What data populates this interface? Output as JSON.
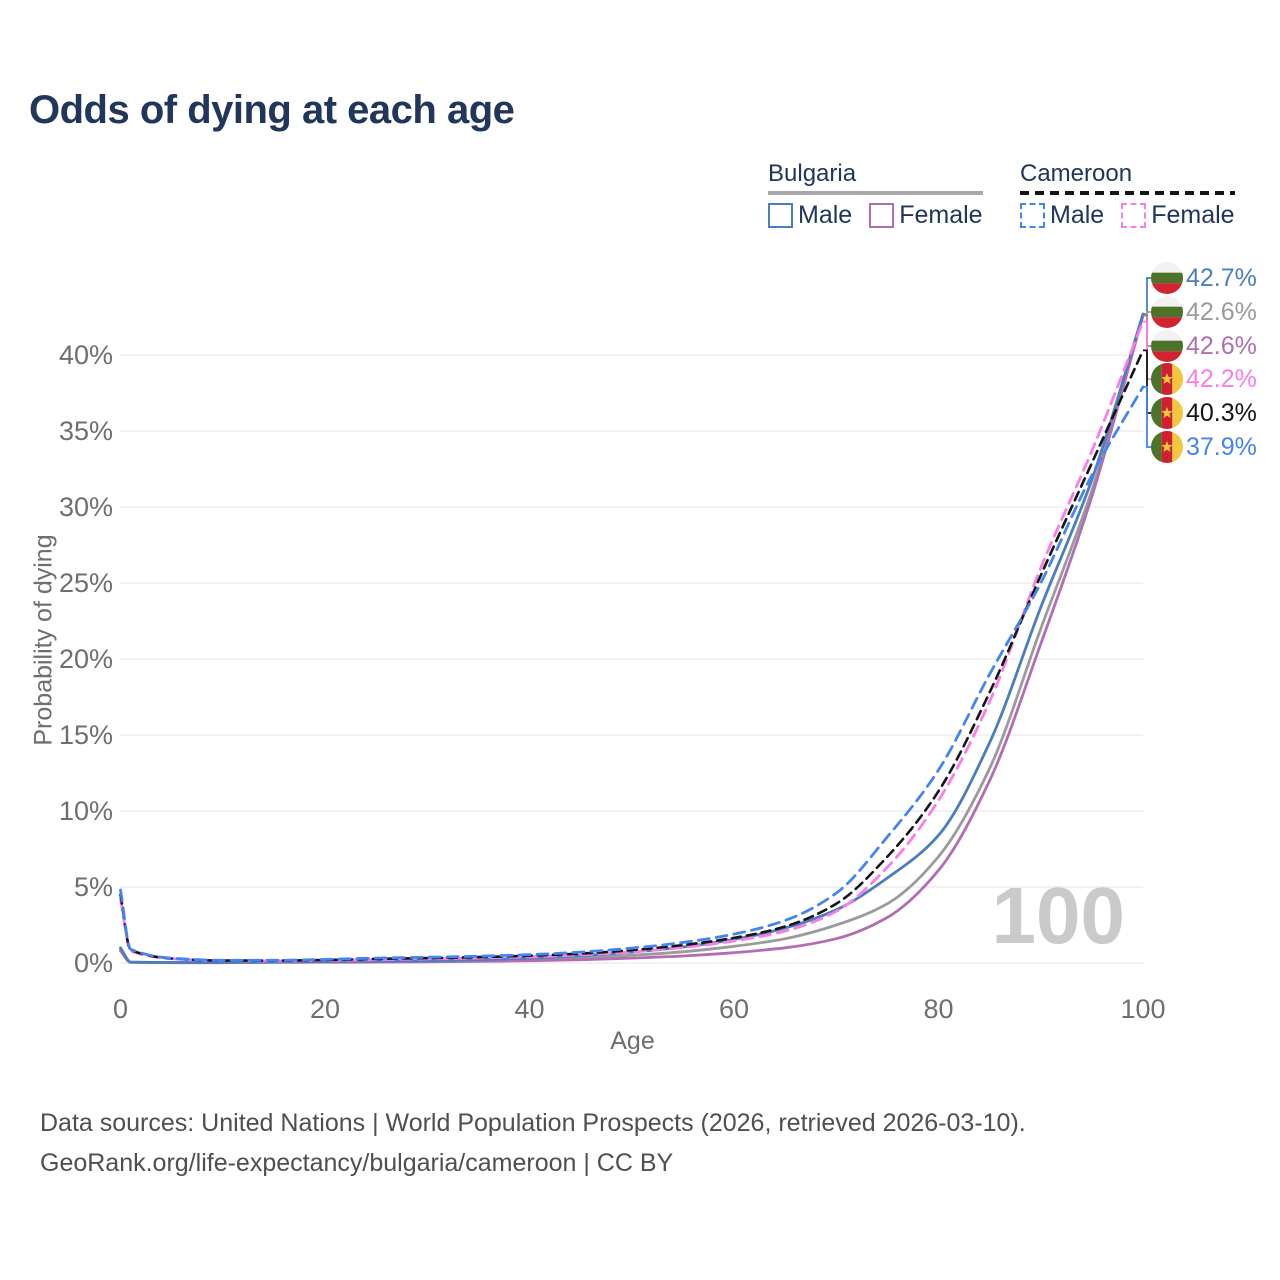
{
  "title": "Odds of dying at each age",
  "legend": {
    "groups": [
      {
        "name": "Bulgaria",
        "line_style": "solid",
        "line_color": "#9b9b9b",
        "items": [
          {
            "label": "Male",
            "color": "#4a7ebc",
            "dashed": false
          },
          {
            "label": "Female",
            "color": "#b06fb2",
            "dashed": false
          }
        ]
      },
      {
        "name": "Cameroon",
        "line_style": "dashed",
        "line_color": "#151515",
        "items": [
          {
            "label": "Male",
            "color": "#4484f3",
            "dashed": true
          },
          {
            "label": "Female",
            "color": "#fb7de7",
            "dashed": true
          }
        ]
      }
    ]
  },
  "axes": {
    "xlabel": "Age",
    "ylabel": "Probability of dying",
    "x_ticks": [
      "0",
      "20",
      "40",
      "60",
      "80",
      "100"
    ],
    "y_ticks": [
      "0%",
      "5%",
      "10%",
      "15%",
      "20%",
      "25%",
      "30%",
      "35%",
      "40%"
    ]
  },
  "age_counter": "100",
  "end_labels": [
    {
      "value": "42.7%",
      "flag": "bulgaria",
      "color": "#4a7ebc",
      "series": "Bulgaria Male"
    },
    {
      "value": "42.6%",
      "flag": "bulgaria",
      "color": "#9b9b9b",
      "series": "Bulgaria Both sexes"
    },
    {
      "value": "42.6%",
      "flag": "bulgaria",
      "color": "#b06fb2",
      "series": "Bulgaria Female"
    },
    {
      "value": "42.2%",
      "flag": "cameroon",
      "color": "#fb7de7",
      "series": "Cameroon Female"
    },
    {
      "value": "40.3%",
      "flag": "cameroon",
      "color": "#151515",
      "series": "Cameroon Both sexes"
    },
    {
      "value": "37.9%",
      "flag": "cameroon",
      "color": "#4484f3",
      "series": "Cameroon Male"
    }
  ],
  "footer": {
    "line1": "Data sources: United Nations | World Population Prospects (2026, retrieved 2026-03-10).",
    "line2": "GeoRank.org/life-expectancy/bulgaria/cameroon | CC BY"
  },
  "flag_colors": {
    "bulgaria": {
      "white": "#f2f2f2",
      "green": "#4c7327",
      "red": "#d12330"
    },
    "cameroon": {
      "green": "#4c7327",
      "red": "#cf1f30",
      "yellow": "#f2c63d"
    }
  },
  "chart_data": {
    "type": "line",
    "title": "Odds of dying at each age",
    "xlabel": "Age",
    "ylabel": "Probability of dying",
    "xlim": [
      0,
      100
    ],
    "ylim": [
      0,
      0.45
    ],
    "grid": "horizontal",
    "legend_position": "top-right",
    "x": [
      0,
      1,
      5,
      10,
      15,
      20,
      25,
      30,
      35,
      40,
      45,
      50,
      55,
      60,
      65,
      70,
      75,
      80,
      85,
      90,
      95,
      100
    ],
    "series": [
      {
        "name": "Bulgaria Male",
        "country": "Bulgaria",
        "sex": "Male",
        "color": "#4a7ebc",
        "dash": "solid",
        "end_label": "42.7%",
        "values": [
          0.01,
          0.0006,
          0.0003,
          0.0003,
          0.0006,
          0.001,
          0.0012,
          0.0015,
          0.0022,
          0.0032,
          0.0048,
          0.0072,
          0.0105,
          0.0155,
          0.023,
          0.035,
          0.056,
          0.084,
          0.145,
          0.234,
          0.318,
          0.427
        ]
      },
      {
        "name": "Bulgaria Both sexes",
        "country": "Bulgaria",
        "sex": "Both",
        "color": "#9b9b9b",
        "dash": "solid",
        "end_label": "42.6%",
        "values": [
          0.009,
          0.0005,
          0.00025,
          0.00025,
          0.0005,
          0.0008,
          0.0009,
          0.0011,
          0.0016,
          0.0023,
          0.0034,
          0.0051,
          0.0074,
          0.011,
          0.016,
          0.025,
          0.039,
          0.07,
          0.128,
          0.22,
          0.311,
          0.426
        ]
      },
      {
        "name": "Bulgaria Female",
        "country": "Bulgaria",
        "sex": "Female",
        "color": "#b06fb2",
        "dash": "solid",
        "end_label": "42.6%",
        "values": [
          0.008,
          0.0004,
          0.0002,
          0.0002,
          0.0004,
          0.0005,
          0.0006,
          0.0008,
          0.0011,
          0.0015,
          0.0022,
          0.0032,
          0.0046,
          0.0068,
          0.01,
          0.016,
          0.03,
          0.061,
          0.12,
          0.21,
          0.307,
          0.426
        ]
      },
      {
        "name": "Cameroon Female",
        "country": "Cameroon",
        "sex": "Female",
        "color": "#fb7de7",
        "dash": "dashed",
        "end_label": "42.2%",
        "values": [
          0.042,
          0.008,
          0.0028,
          0.0015,
          0.0014,
          0.0017,
          0.0022,
          0.0027,
          0.0033,
          0.0041,
          0.0053,
          0.0073,
          0.0102,
          0.0145,
          0.021,
          0.034,
          0.063,
          0.107,
          0.172,
          0.26,
          0.337,
          0.422
        ]
      },
      {
        "name": "Cameroon Both sexes",
        "country": "Cameroon",
        "sex": "Both",
        "color": "#151515",
        "dash": "dashed",
        "end_label": "40.3%",
        "values": [
          0.045,
          0.0085,
          0.003,
          0.0016,
          0.0016,
          0.002,
          0.0027,
          0.0032,
          0.0039,
          0.0048,
          0.0062,
          0.0085,
          0.0118,
          0.0165,
          0.024,
          0.039,
          0.07,
          0.113,
          0.178,
          0.255,
          0.329,
          0.403
        ]
      },
      {
        "name": "Cameroon Male",
        "country": "Cameroon",
        "sex": "Male",
        "color": "#4484f3",
        "dash": "dashed",
        "end_label": "37.9%",
        "values": [
          0.048,
          0.009,
          0.0032,
          0.0018,
          0.0018,
          0.0024,
          0.0032,
          0.0038,
          0.0045,
          0.0055,
          0.0072,
          0.0098,
          0.0135,
          0.019,
          0.028,
          0.046,
          0.083,
          0.127,
          0.19,
          0.25,
          0.321,
          0.379
        ]
      }
    ]
  }
}
